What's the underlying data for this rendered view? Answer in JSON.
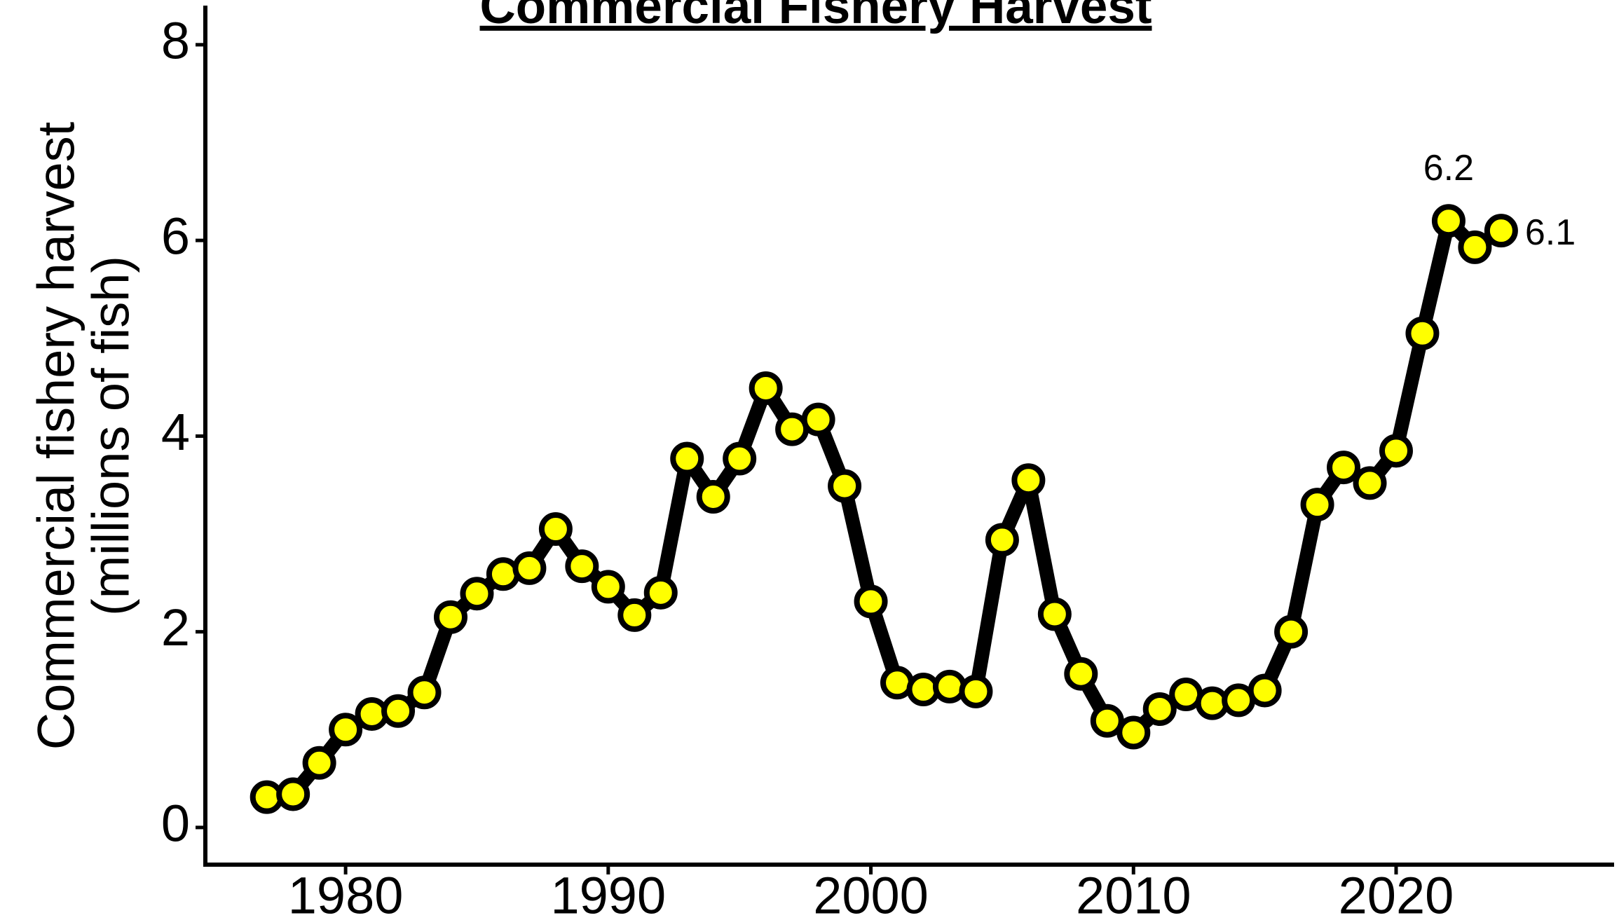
{
  "chart_data": {
    "type": "line",
    "title": "Commercial Fishery Harvest",
    "y_label": [
      "Commercial fishery harvest",
      "(millions of fish)"
    ],
    "x": [
      1977,
      1978,
      1979,
      1980,
      1981,
      1982,
      1983,
      1984,
      1985,
      1986,
      1987,
      1988,
      1989,
      1990,
      1991,
      1992,
      1993,
      1994,
      1995,
      1996,
      1997,
      1998,
      1999,
      2000,
      2001,
      2002,
      2003,
      2004,
      2005,
      2006,
      2007,
      2008,
      2009,
      2010,
      2011,
      2012,
      2013,
      2014,
      2015,
      2016,
      2017,
      2018,
      2019,
      2020,
      2021,
      2022,
      2023,
      2024
    ],
    "series": [
      {
        "name": "Commercial fishery harvest",
        "color": "#ffff00",
        "line_color": "#000000",
        "values": [
          0.31,
          0.34,
          0.66,
          1.0,
          1.16,
          1.19,
          1.38,
          2.15,
          2.39,
          2.59,
          2.65,
          3.05,
          2.67,
          2.46,
          2.17,
          2.4,
          3.77,
          3.38,
          3.77,
          4.49,
          4.07,
          4.17,
          3.49,
          2.31,
          1.48,
          1.41,
          1.44,
          1.39,
          2.94,
          3.55,
          2.18,
          1.57,
          1.09,
          0.97,
          1.21,
          1.36,
          1.27,
          1.3,
          1.4,
          2.0,
          3.3,
          3.68,
          3.52,
          3.85,
          5.05,
          6.2,
          5.93,
          6.1
        ],
        "value_labels": [
          null,
          null,
          null,
          null,
          null,
          null,
          null,
          null,
          null,
          null,
          null,
          null,
          null,
          null,
          null,
          null,
          null,
          null,
          null,
          null,
          null,
          null,
          null,
          null,
          null,
          null,
          null,
          null,
          null,
          null,
          null,
          null,
          null,
          null,
          null,
          null,
          null,
          null,
          null,
          null,
          null,
          null,
          null,
          null,
          null,
          "6.2",
          null,
          "6.1"
        ]
      }
    ],
    "xlim": [
      1974.66,
      2028.3
    ],
    "xticks": [
      1980,
      1990,
      2000,
      2010,
      2020
    ],
    "ylim": [
      -0.38,
      8.4
    ],
    "yticks": [
      0,
      2,
      4,
      6,
      8
    ],
    "grid": false
  }
}
